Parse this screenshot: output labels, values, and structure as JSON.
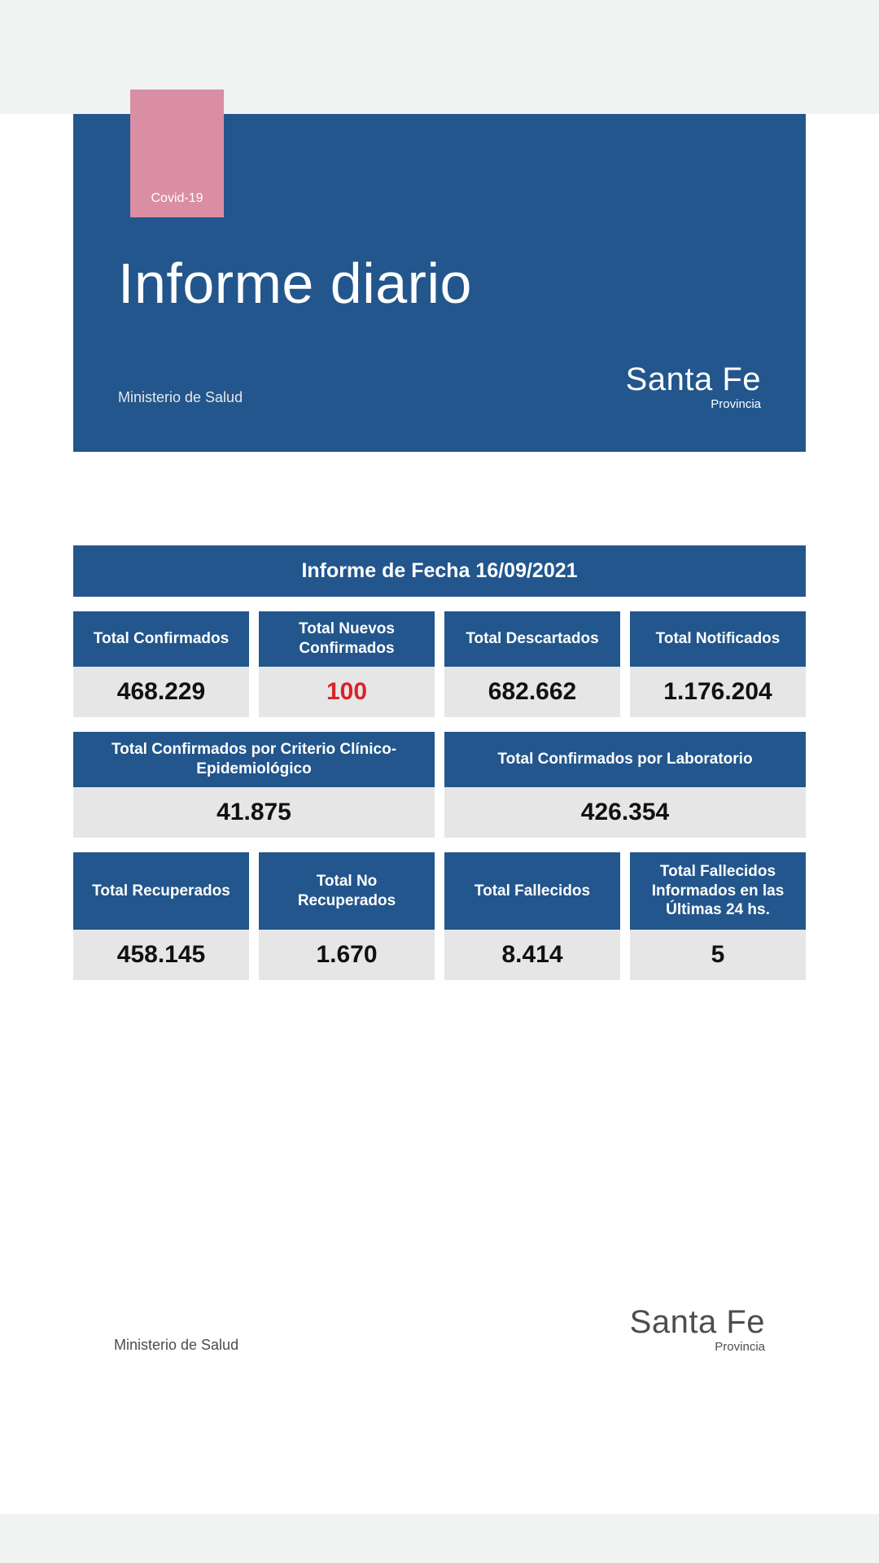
{
  "colors": {
    "primary": "#22568c",
    "pink": "#d98ea3",
    "valBg": "#e6e6e6",
    "highlight": "#d8232a",
    "topBar": "#f1f2f2"
  },
  "header": {
    "tag": "Covid-19",
    "title": "Informe diario",
    "ministerio": "Ministerio de Salud",
    "logoBig": "Santa Fe",
    "logoSmall": "Provincia"
  },
  "dateBanner": "Informe de Fecha 16/09/2021",
  "row1": [
    {
      "label": "Total Confirmados",
      "value": "468.229",
      "highlight": false
    },
    {
      "label": "Total Nuevos Confirmados",
      "value": "100",
      "highlight": true
    },
    {
      "label": "Total Descartados",
      "value": "682.662",
      "highlight": false
    },
    {
      "label": "Total Notificados",
      "value": "1.176.204",
      "highlight": false
    }
  ],
  "row2": [
    {
      "label": "Total Confirmados por Criterio Clínico-Epidemiológico",
      "value": "41.875"
    },
    {
      "label": "Total Confirmados por Laboratorio",
      "value": "426.354"
    }
  ],
  "row3": [
    {
      "label": "Total Recuperados",
      "value": "458.145"
    },
    {
      "label": "Total No Recuperados",
      "value": "1.670"
    },
    {
      "label": "Total Fallecidos",
      "value": "8.414"
    },
    {
      "label": "Total Fallecidos Informados en las Últimas 24 hs.",
      "value": "5"
    }
  ],
  "footer": {
    "ministerio": "Ministerio de Salud",
    "logoBig": "Santa Fe",
    "logoSmall": "Provincia"
  }
}
